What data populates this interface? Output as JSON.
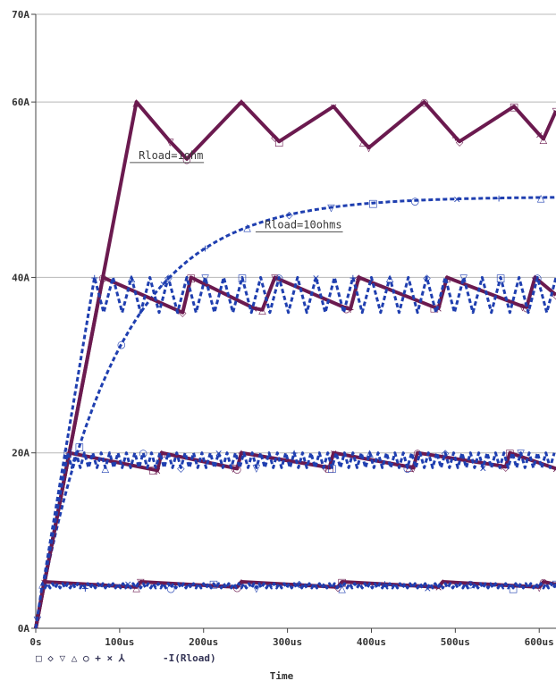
{
  "chart_data": {
    "type": "line",
    "xlabel": "Time",
    "ylabel": "",
    "xlim": [
      0,
      620
    ],
    "ylim": [
      0,
      70
    ],
    "x_ticks": [
      {
        "value": 0,
        "label": "0s"
      },
      {
        "value": 100,
        "label": "100us"
      },
      {
        "value": 200,
        "label": "200us"
      },
      {
        "value": 300,
        "label": "300us"
      },
      {
        "value": 400,
        "label": "400us"
      },
      {
        "value": 500,
        "label": "500us"
      },
      {
        "value": 600,
        "label": "600us"
      }
    ],
    "y_ticks": [
      {
        "value": 0,
        "label": "0A"
      },
      {
        "value": 20,
        "label": "20A"
      },
      {
        "value": 40,
        "label": "40A"
      },
      {
        "value": 60,
        "label": "60A"
      },
      {
        "value": 70,
        "label": "70A"
      }
    ],
    "grid": true,
    "legend": {
      "text": "-I(Rload)",
      "marker_symbols": "□ ◇ ▽ △ ○ + × ⅄",
      "placement": "bottom-left"
    },
    "annotations": [
      {
        "text": "Rload=1ohm",
        "x": 112,
        "y": 53.5
      },
      {
        "text": "Rload=10ohms",
        "x": 262,
        "y": 45.6
      }
    ],
    "colors": {
      "sawtooth": "#6b1a4f",
      "smooth": "#1f3fb0",
      "grid": "#b8b8b8",
      "axis": "#444444"
    },
    "series": [
      {
        "style": "sawtooth",
        "x": [
          0,
          120,
          160,
          180,
          245,
          285,
          290,
          355,
          390,
          397,
          463,
          500,
          505,
          570,
          600,
          605,
          620
        ],
        "y": [
          0,
          60,
          55.5,
          53.5,
          60,
          56,
          55.5,
          59.5,
          55.5,
          54.8,
          60,
          56,
          55.5,
          59.5,
          56.3,
          55.8,
          59
        ]
      },
      {
        "style": "smooth",
        "tau_us": 95,
        "final": 49.2,
        "x": [
          0,
          50,
          100,
          150,
          200,
          250,
          300,
          350,
          400,
          450,
          500,
          550,
          600,
          620
        ],
        "y": [
          0,
          20.5,
          32.7,
          39.9,
          44.1,
          46.6,
          47.9,
          48.5,
          48.8,
          49.0,
          49.1,
          49.2,
          49.2,
          49.2
        ]
      },
      {
        "style": "sawtooth",
        "x": [
          0,
          80,
          170,
          175,
          185,
          260,
          270,
          285,
          370,
          375,
          385,
          475,
          480,
          490,
          580,
          585,
          595,
          620
        ],
        "y": [
          0,
          40,
          36.2,
          36,
          40,
          36.5,
          36.3,
          40,
          36.5,
          36.4,
          40,
          36.6,
          36.5,
          40,
          36.7,
          36.6,
          40,
          38
        ]
      },
      {
        "style": "smooth-ripple",
        "x_start": 70,
        "x_end": 620,
        "period_us": 22,
        "high": 40,
        "low": 36
      },
      {
        "style": "sawtooth",
        "x": [
          0,
          40,
          140,
          145,
          150,
          235,
          240,
          245,
          345,
          350,
          355,
          445,
          450,
          455,
          555,
          560,
          565,
          620
        ],
        "y": [
          0,
          20,
          18.1,
          18,
          20,
          18.3,
          18.2,
          20,
          18.4,
          18.3,
          20,
          18.4,
          18.3,
          20,
          18.5,
          18.4,
          20,
          18.2
        ]
      },
      {
        "style": "smooth-ripple",
        "x_start": 38,
        "x_end": 620,
        "period_us": 10,
        "high": 20,
        "low": 18.3
      },
      {
        "style": "sawtooth",
        "x": [
          0,
          10,
          120,
          125,
          240,
          245,
          360,
          365,
          480,
          485,
          600,
          605,
          620
        ],
        "y": [
          0,
          5.3,
          4.7,
          5.3,
          4.7,
          5.3,
          4.7,
          5.3,
          4.7,
          5.3,
          4.7,
          5.3,
          5.0
        ]
      },
      {
        "style": "smooth-ripple",
        "x_start": 8,
        "x_end": 620,
        "period_us": 6,
        "high": 5.1,
        "low": 4.6
      }
    ]
  }
}
